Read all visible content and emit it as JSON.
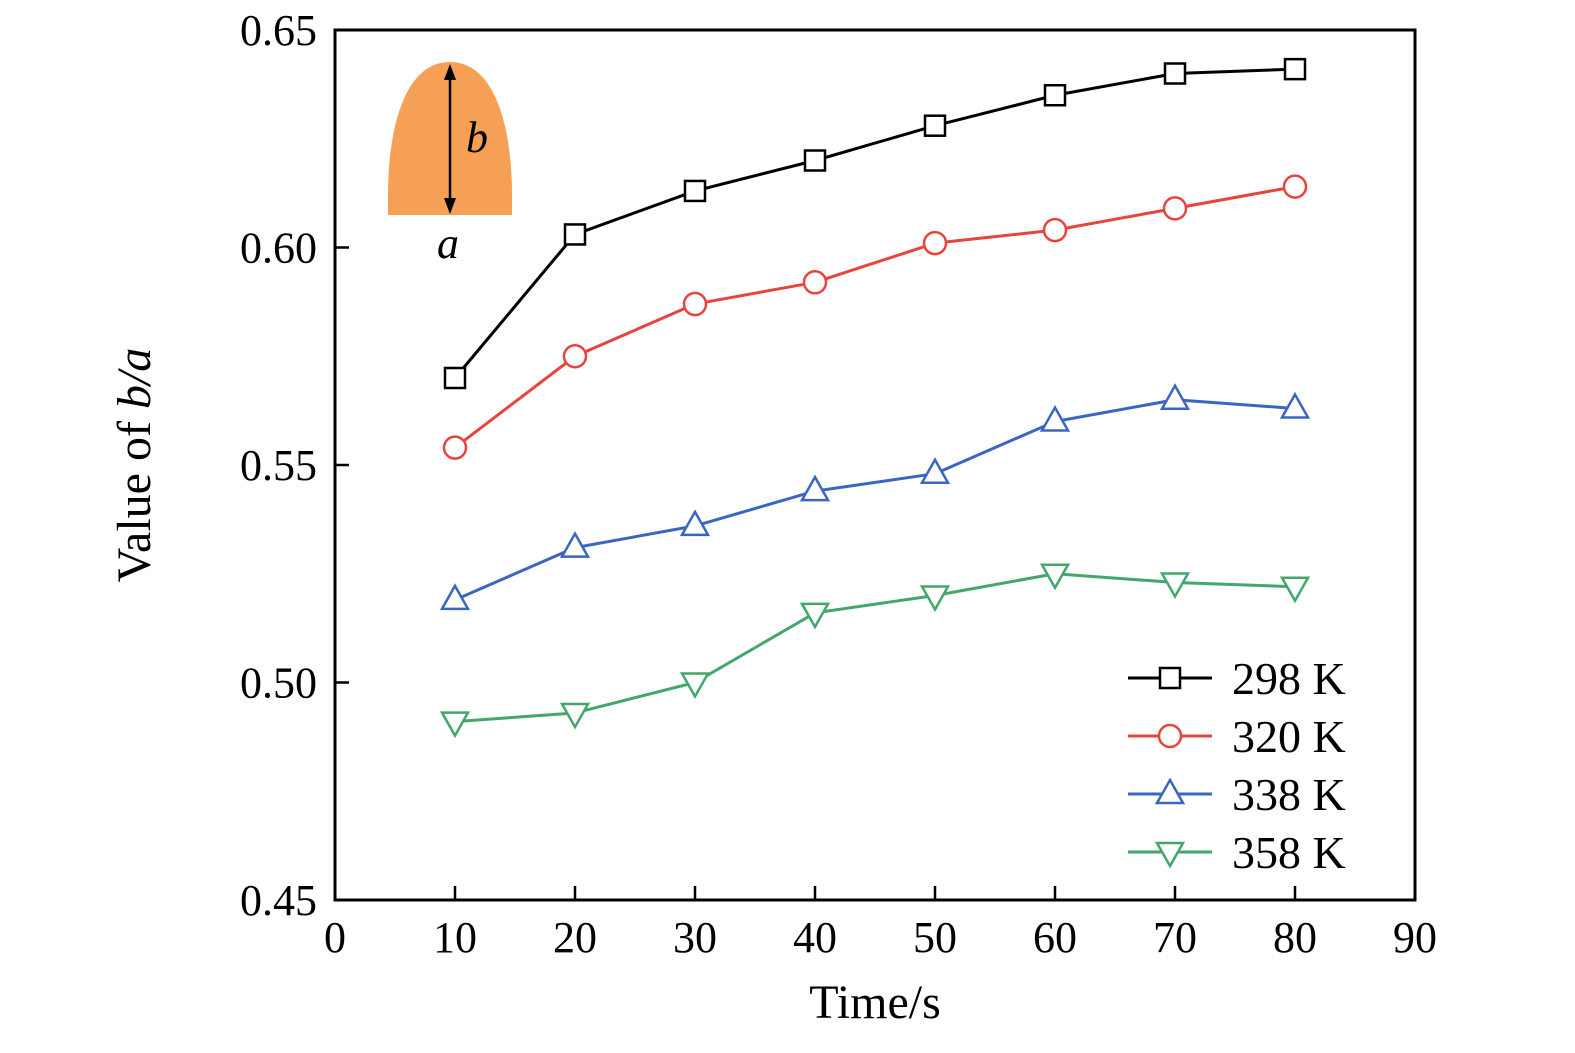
{
  "chart_data": {
    "type": "line",
    "title": "",
    "xlabel": "Time/s",
    "ylabel": "Value of b/a",
    "ylabel_prefix": "Value of ",
    "ylabel_italic": "b/a",
    "xlim": [
      0,
      90
    ],
    "ylim": [
      0.45,
      0.65
    ],
    "xticks": [
      0,
      10,
      20,
      30,
      40,
      50,
      60,
      70,
      80,
      90
    ],
    "xtick_labels": [
      "0",
      "10",
      "20",
      "30",
      "40",
      "50",
      "60",
      "70",
      "80",
      "90"
    ],
    "yticks": [
      0.45,
      0.5,
      0.55,
      0.6,
      0.65
    ],
    "ytick_labels": [
      "0.45",
      "0.50",
      "0.55",
      "0.60",
      "0.65"
    ],
    "grid": false,
    "x": [
      10,
      20,
      30,
      40,
      50,
      60,
      70,
      80
    ],
    "series": [
      {
        "name": "298 K",
        "color": "#000000",
        "marker": "square",
        "values": [
          0.57,
          0.603,
          0.613,
          0.62,
          0.628,
          0.635,
          0.64,
          0.641
        ]
      },
      {
        "name": "320 K",
        "color": "#e8433c",
        "marker": "circle",
        "values": [
          0.554,
          0.575,
          0.587,
          0.592,
          0.601,
          0.604,
          0.609,
          0.614
        ]
      },
      {
        "name": "338 K",
        "color": "#3a66c2",
        "marker": "triangle-up",
        "values": [
          0.519,
          0.531,
          0.536,
          0.544,
          0.548,
          0.56,
          0.565,
          0.563
        ]
      },
      {
        "name": "358 K",
        "color": "#43a76c",
        "marker": "triangle-down",
        "values": [
          0.491,
          0.493,
          0.5,
          0.516,
          0.52,
          0.525,
          0.523,
          0.522
        ]
      }
    ],
    "legend": {
      "position": "bottom-right",
      "entries": [
        "298 K",
        "320 K",
        "338 K",
        "358 K"
      ]
    },
    "inset": {
      "shape": "dome",
      "fill_color": "#f5a054",
      "height_label": "b",
      "width_label": "a"
    }
  }
}
